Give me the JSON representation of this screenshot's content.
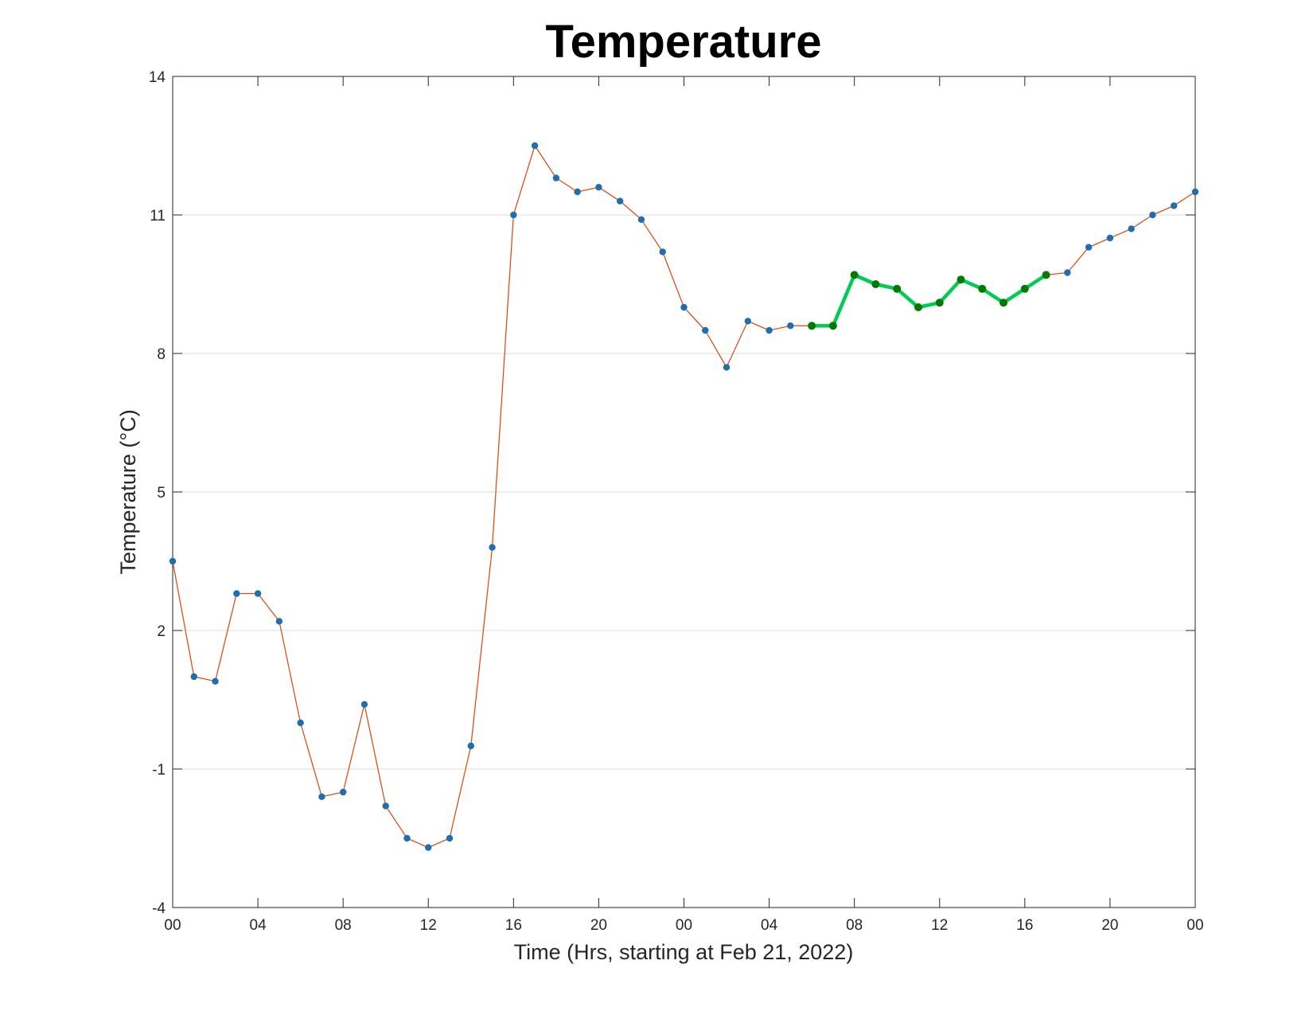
{
  "chart_data": {
    "type": "line",
    "title": "Temperature",
    "xlabel": "Time (Hrs, starting at Feb 21, 2022)",
    "ylabel": "Temperature (°C)",
    "ylim": [
      -4,
      14
    ],
    "yticks": [
      -4,
      -1,
      2,
      5,
      8,
      11,
      14
    ],
    "xlim_hours": [
      0,
      48
    ],
    "xtick_hours": [
      0,
      4,
      8,
      12,
      16,
      20,
      24,
      28,
      32,
      36,
      40,
      44,
      48
    ],
    "xtick_labels": [
      "00",
      "04",
      "08",
      "12",
      "16",
      "20",
      "00",
      "04",
      "08",
      "12",
      "16",
      "20",
      "00"
    ],
    "grid": "horizontal",
    "series": [
      {
        "color": "#d95319",
        "marker_color": "#1f6fb0",
        "x_hours": [
          0,
          1,
          2,
          3,
          4,
          5,
          6,
          7,
          8,
          9,
          10,
          11,
          12,
          13,
          14,
          15,
          16,
          17,
          18,
          19,
          20,
          21,
          22,
          23,
          24,
          25,
          26,
          27,
          28,
          29,
          30,
          31,
          32,
          33,
          34,
          35,
          36,
          37,
          38,
          39,
          40,
          41,
          42,
          43,
          44,
          45,
          46,
          47,
          48
        ],
        "values": [
          3.5,
          1.0,
          0.9,
          2.8,
          2.8,
          2.2,
          0.0,
          -1.6,
          -1.5,
          0.4,
          -1.8,
          -2.5,
          -2.7,
          -2.5,
          -0.5,
          3.8,
          11.0,
          12.5,
          11.8,
          11.5,
          11.6,
          11.3,
          10.9,
          10.2,
          9.0,
          8.5,
          7.7,
          8.7,
          8.5,
          8.6,
          8.6,
          8.6,
          9.7,
          9.5,
          9.4,
          9.0,
          9.1,
          9.6,
          9.4,
          9.1,
          9.4,
          9.7,
          9.75,
          10.3,
          10.5,
          10.7,
          11.0,
          11.2,
          11.5
        ]
      },
      {
        "color": "#00cc55",
        "marker_color": "#007a00",
        "x_hours": [
          30,
          31,
          32,
          33,
          34,
          35,
          36,
          37,
          38,
          39,
          40,
          41
        ],
        "values": [
          8.6,
          8.6,
          9.7,
          9.5,
          9.4,
          9.0,
          9.1,
          9.6,
          9.4,
          9.1,
          9.4,
          9.7
        ]
      }
    ]
  }
}
